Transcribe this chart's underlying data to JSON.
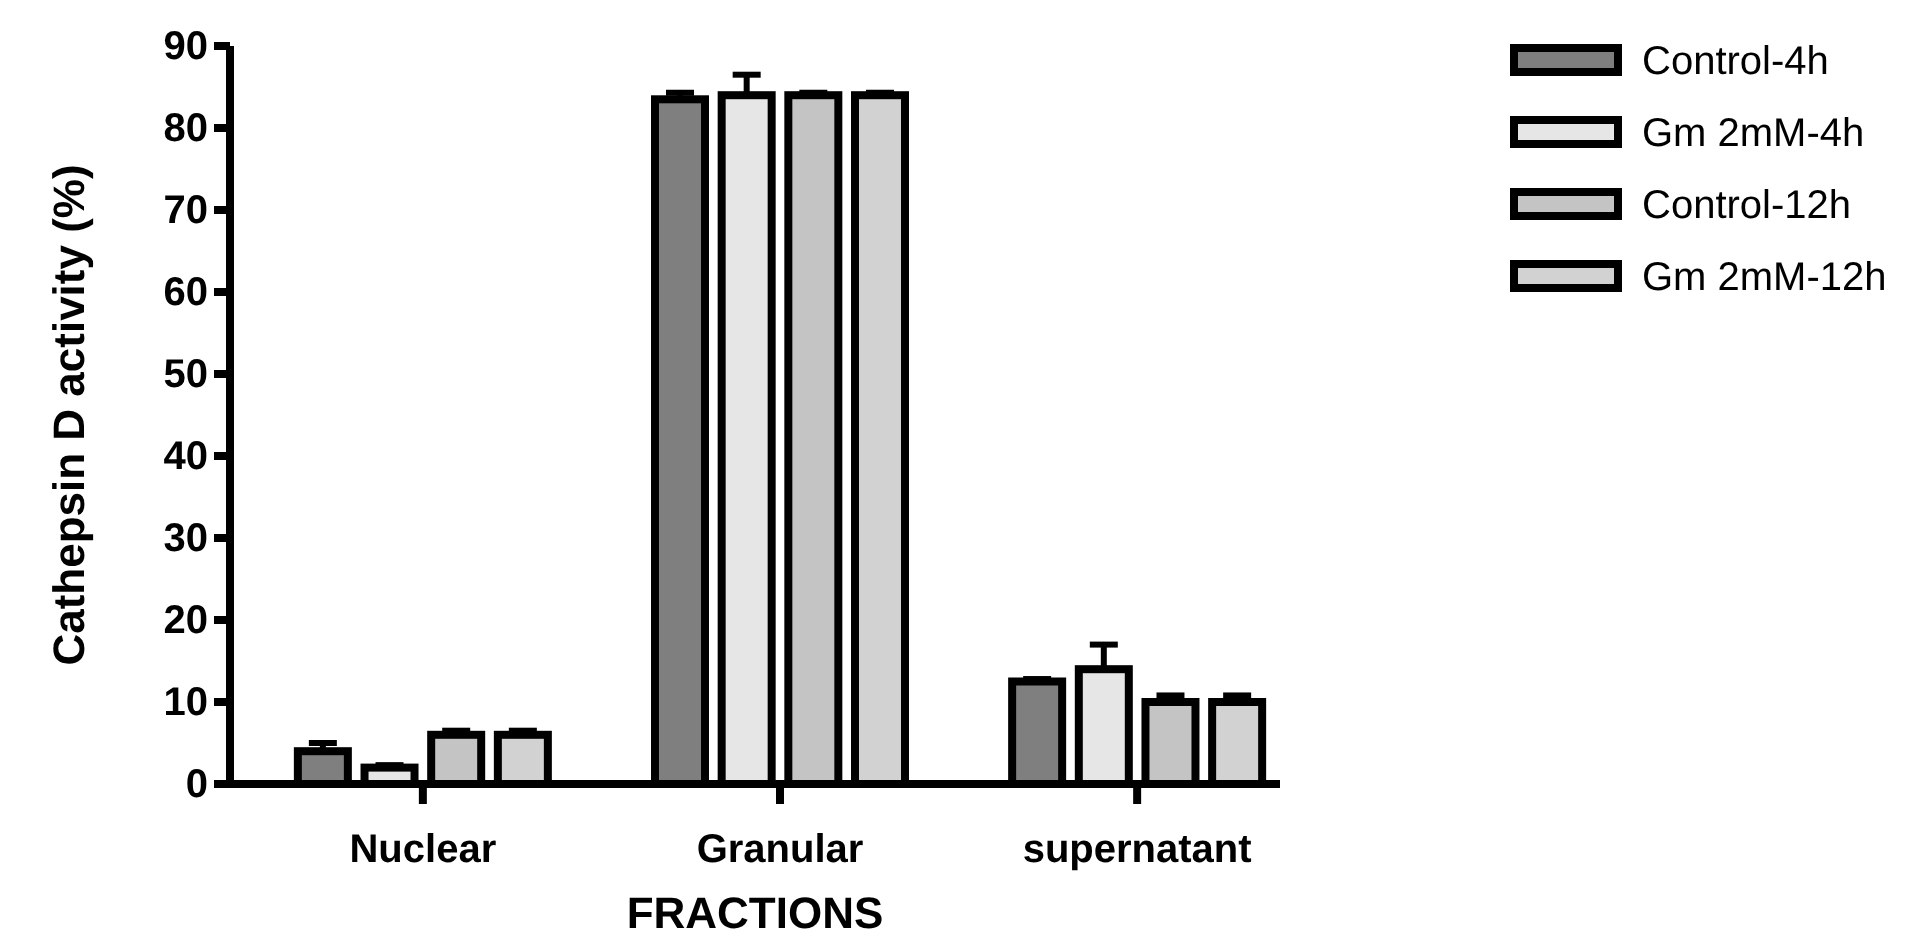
{
  "chart_data": {
    "type": "bar",
    "xlabel": "FRACTIONS",
    "ylabel": "Cathepsin D activity (%)",
    "categories": [
      "Nuclear",
      "Granular",
      "supernatant"
    ],
    "series": [
      {
        "name": "Control-4h",
        "color": "#7f7f7f",
        "values": [
          4,
          83.5,
          12.5
        ],
        "errors": [
          1,
          0.8,
          0.3
        ]
      },
      {
        "name": "Gm 2mM-4h",
        "color": "#e6e6e6",
        "values": [
          2,
          84,
          14
        ],
        "errors": [
          0.3,
          2.5,
          3
        ]
      },
      {
        "name": "Control-12h",
        "color": "#c4c4c4",
        "values": [
          6,
          84,
          10
        ],
        "errors": [
          0.5,
          0.3,
          0.8
        ]
      },
      {
        "name": "Gm 2mM-12h",
        "color": "#d2d2d2",
        "values": [
          6,
          84,
          10
        ],
        "errors": [
          0.5,
          0.3,
          0.8
        ]
      }
    ],
    "ylim": [
      0,
      90
    ],
    "yticks": [
      0,
      10,
      20,
      30,
      40,
      50,
      60,
      70,
      80,
      90
    ],
    "legend": "right"
  }
}
